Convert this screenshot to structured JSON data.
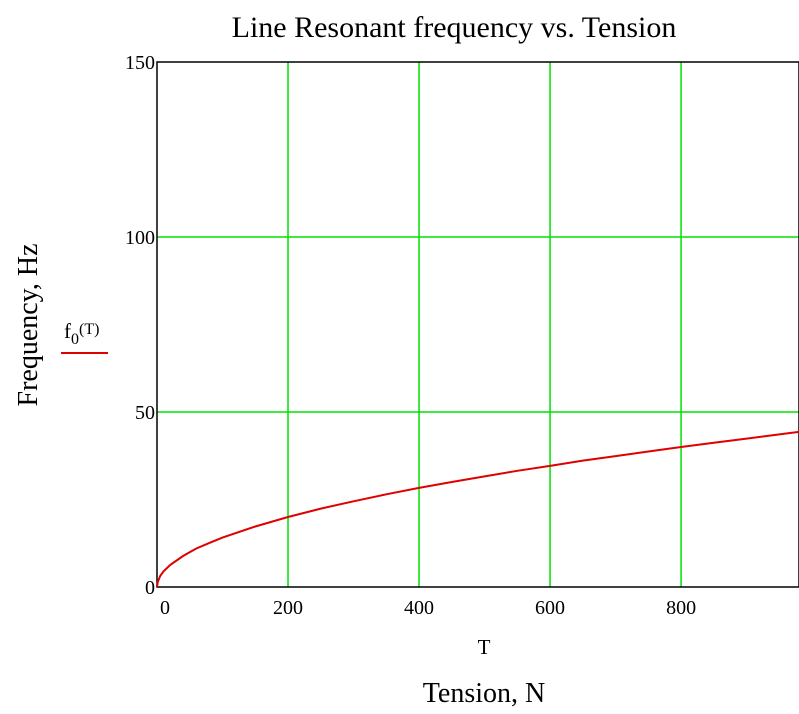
{
  "chart_data": {
    "type": "line",
    "title": "Line Resonant frequency vs. Tension",
    "xlabel": "Tension, N",
    "xvar": "T",
    "ylabel": "Frequency, Hz",
    "xlim": [
      0,
      980
    ],
    "ylim": [
      0,
      150
    ],
    "x_ticks": [
      0,
      200,
      400,
      600,
      800
    ],
    "y_ticks": [
      0,
      50,
      100,
      150
    ],
    "grid": true,
    "grid_color": "#00e000",
    "legend": {
      "position": "left",
      "label_main": "f",
      "label_sub": "0",
      "label_arg": "(T)"
    },
    "series": [
      {
        "color": "#e00000",
        "x": [
          0,
          1,
          5,
          10,
          20,
          40,
          60,
          80,
          100,
          150,
          200,
          250,
          300,
          350,
          400,
          450,
          500,
          550,
          600,
          650,
          700,
          750,
          800,
          850,
          900,
          950,
          980
        ],
        "y": [
          0,
          1.4,
          3.2,
          4.5,
          6.3,
          8.9,
          11.0,
          12.6,
          14.1,
          17.3,
          20.0,
          22.4,
          24.5,
          26.5,
          28.3,
          30.0,
          31.6,
          33.2,
          34.6,
          36.1,
          37.4,
          38.7,
          40.0,
          41.2,
          42.4,
          43.6,
          44.3
        ]
      }
    ]
  }
}
